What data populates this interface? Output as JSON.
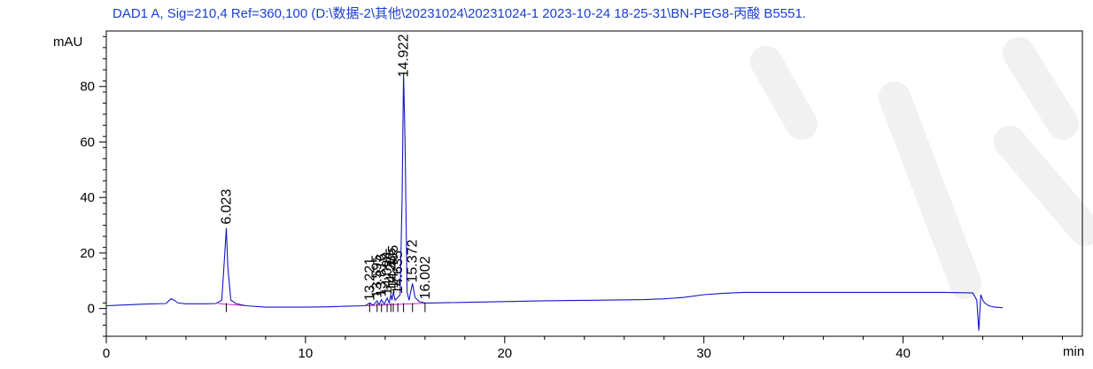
{
  "chart_data": {
    "type": "line",
    "title": "DAD1 A, Sig=210,4 Ref=360,100 (D:\\数据-2\\其他\\20231024\\20231024-1 2023-10-24 18-25-31\\BN-PEG8-丙酸 B5551.",
    "xlabel": "min",
    "ylabel": "mAU",
    "xlim": [
      0,
      49
    ],
    "ylim": [
      -10,
      100
    ],
    "x_ticks": [
      0,
      10,
      20,
      30,
      40
    ],
    "y_ticks": [
      0,
      20,
      40,
      60,
      80
    ],
    "grid": false,
    "colors": {
      "signal": "#1515c8",
      "baseline": "#d020c8",
      "title": "#1c3fcf",
      "axis": "#000000"
    },
    "peaks": [
      {
        "rt": 6.023,
        "label": "6.023",
        "height": 29
      },
      {
        "rt": 13.221,
        "label": "13.221",
        "height": 1.5
      },
      {
        "rt": 13.595,
        "label": "13.595",
        "height": 2.5
      },
      {
        "rt": 13.816,
        "label": "13.816",
        "height": 3
      },
      {
        "rt": 14.098,
        "label": "14.098",
        "height": 3.5
      },
      {
        "rt": 14.285,
        "label": "14.285",
        "height": 5
      },
      {
        "rt": 14.405,
        "label": "14.405",
        "height": 6
      },
      {
        "rt": 14.635,
        "label": "14.635",
        "height": 4
      },
      {
        "rt": 14.922,
        "label": "14.922",
        "height": 82
      },
      {
        "rt": 15.372,
        "label": "15.372",
        "height": 8
      },
      {
        "rt": 16.002,
        "label": "16.002",
        "height": 2
      }
    ],
    "series": [
      {
        "x": [
          0,
          1,
          2,
          3,
          3.1,
          3.25,
          3.4,
          3.6,
          4,
          5,
          5.5,
          5.8,
          5.95,
          6.023,
          6.1,
          6.25,
          6.5,
          7,
          8,
          9,
          10,
          11,
          12,
          13,
          13.221,
          13.4,
          13.595,
          13.7,
          13.816,
          13.95,
          14.098,
          14.2,
          14.285,
          14.34,
          14.405,
          14.5,
          14.635,
          14.75,
          14.85,
          14.922,
          15.0,
          15.1,
          15.2,
          15.372,
          15.5,
          15.7,
          16.002,
          16.3,
          17,
          18,
          20,
          22,
          25,
          27,
          28,
          29,
          30,
          31,
          32,
          33,
          35,
          38,
          40,
          42,
          43,
          43.5,
          43.7,
          43.8,
          43.9,
          44.0,
          44.1,
          44.3,
          44.6,
          45
        ],
        "y": [
          1,
          1.3,
          1.6,
          1.8,
          2.5,
          3.5,
          3,
          2,
          1.7,
          1.7,
          1.8,
          3,
          20,
          29,
          15,
          3,
          1.8,
          1,
          0.5,
          0.5,
          0.5,
          0.6,
          0.8,
          1,
          2,
          1.2,
          2.8,
          1.4,
          3.2,
          1.5,
          3.8,
          2,
          5,
          3,
          6,
          3,
          4,
          5,
          40,
          85,
          60,
          6,
          3,
          9,
          4,
          2.5,
          2,
          2,
          2.1,
          2.2,
          2.5,
          2.8,
          3,
          3.2,
          3.5,
          4,
          5,
          5.5,
          5.8,
          5.8,
          5.8,
          5.8,
          5.8,
          5.8,
          5.7,
          5.6,
          3,
          -8,
          5,
          3,
          2,
          1,
          0.5,
          0.3
        ]
      }
    ]
  }
}
